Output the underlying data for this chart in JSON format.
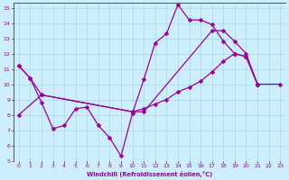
{
  "xlabel": "Windchill (Refroidissement éolien,°C)",
  "bg_color": "#cceeff",
  "grid_color": "#aad8d8",
  "line_color": "#990099",
  "xlim": [
    -0.5,
    23.5
  ],
  "ylim": [
    5,
    15.3
  ],
  "xticks": [
    0,
    1,
    2,
    3,
    4,
    5,
    6,
    7,
    8,
    9,
    10,
    11,
    12,
    13,
    14,
    15,
    16,
    17,
    18,
    19,
    20,
    21,
    22,
    23
  ],
  "yticks": [
    5,
    6,
    7,
    8,
    9,
    10,
    11,
    12,
    13,
    14,
    15
  ],
  "line1_x": [
    0,
    1,
    2,
    3,
    4,
    5,
    6,
    7,
    8,
    9,
    10,
    11,
    12,
    13,
    14,
    15,
    16,
    17,
    18,
    19,
    20,
    21
  ],
  "line1_y": [
    11.2,
    10.4,
    8.8,
    7.1,
    7.3,
    8.4,
    8.5,
    7.3,
    6.5,
    5.3,
    8.1,
    10.3,
    12.7,
    13.3,
    15.2,
    14.2,
    14.2,
    13.9,
    12.8,
    12.0,
    11.8,
    10.0
  ],
  "line2_x": [
    0,
    1,
    2,
    10,
    11,
    12,
    13,
    14,
    15,
    16,
    17,
    18,
    19,
    20,
    21,
    23
  ],
  "line2_y": [
    11.2,
    10.4,
    9.3,
    8.2,
    8.4,
    8.7,
    9.0,
    9.5,
    9.8,
    10.2,
    10.8,
    11.5,
    12.0,
    11.8,
    10.0,
    10.0
  ],
  "line3_x": [
    0,
    2,
    10,
    11,
    17,
    18,
    19,
    20,
    21
  ],
  "line3_y": [
    8.0,
    9.3,
    8.2,
    8.2,
    13.5,
    13.5,
    12.8,
    12.0,
    10.0
  ]
}
